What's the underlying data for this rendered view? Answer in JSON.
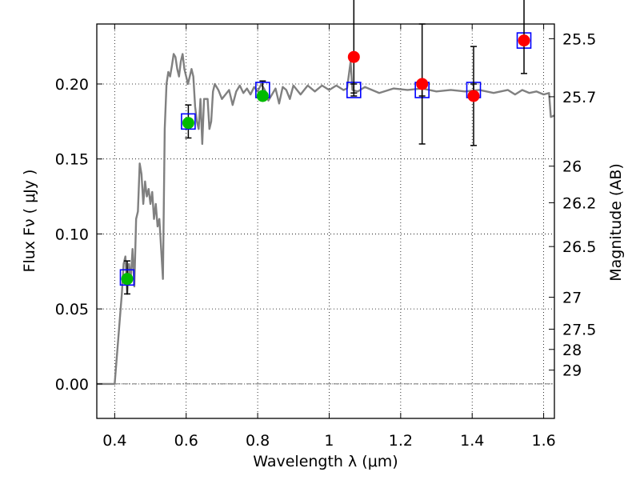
{
  "chart_data": {
    "type": "scatter",
    "title": "",
    "xlabel": "Wavelength  λ (μm)",
    "ylabel": "Flux  Fν  ( μJy )",
    "ylabel_right": "Magnitude (AB)",
    "xlim": [
      0.35,
      1.63
    ],
    "ylim": [
      -0.023,
      0.24
    ],
    "grid": true,
    "x_ticks": [
      0.4,
      0.6,
      0.8,
      1.0,
      1.2,
      1.4,
      1.6
    ],
    "x_tick_labels": [
      "0.4",
      "0.6",
      "0.8",
      "1",
      "1.2",
      "1.4",
      "1.6"
    ],
    "y_ticks": [
      0.0,
      0.05,
      0.1,
      0.15,
      0.2
    ],
    "y_tick_labels": [
      "0.00",
      "0.05",
      "0.10",
      "0.15",
      "0.20"
    ],
    "right_ticks": [
      {
        "label": "25.5",
        "flux": 0.2302
      },
      {
        "label": "25.7",
        "flux": 0.1915
      },
      {
        "label": "26",
        "flux": 0.1452
      },
      {
        "label": "26.2",
        "flux": 0.1208
      },
      {
        "label": "26.5",
        "flux": 0.0916
      },
      {
        "label": "27",
        "flux": 0.0578
      },
      {
        "label": "27.5",
        "flux": 0.0365
      },
      {
        "label": "28",
        "flux": 0.023
      },
      {
        "label": "29",
        "flux": 0.0092
      }
    ],
    "model_spectrum": {
      "name": "",
      "color": "#808080",
      "points": [
        [
          0.35,
          0.0
        ],
        [
          0.4,
          0.0
        ],
        [
          0.41,
          0.03
        ],
        [
          0.42,
          0.06
        ],
        [
          0.425,
          0.08
        ],
        [
          0.43,
          0.085
        ],
        [
          0.435,
          0.06
        ],
        [
          0.44,
          0.08
        ],
        [
          0.445,
          0.07
        ],
        [
          0.45,
          0.09
        ],
        [
          0.455,
          0.065
        ],
        [
          0.46,
          0.11
        ],
        [
          0.465,
          0.115
        ],
        [
          0.47,
          0.147
        ],
        [
          0.475,
          0.14
        ],
        [
          0.48,
          0.12
        ],
        [
          0.485,
          0.135
        ],
        [
          0.49,
          0.125
        ],
        [
          0.495,
          0.13
        ],
        [
          0.5,
          0.12
        ],
        [
          0.505,
          0.128
        ],
        [
          0.51,
          0.11
        ],
        [
          0.515,
          0.12
        ],
        [
          0.52,
          0.105
        ],
        [
          0.525,
          0.11
        ],
        [
          0.53,
          0.09
        ],
        [
          0.535,
          0.07
        ],
        [
          0.54,
          0.17
        ],
        [
          0.545,
          0.2
        ],
        [
          0.55,
          0.208
        ],
        [
          0.555,
          0.205
        ],
        [
          0.56,
          0.212
        ],
        [
          0.565,
          0.22
        ],
        [
          0.57,
          0.218
        ],
        [
          0.575,
          0.21
        ],
        [
          0.58,
          0.205
        ],
        [
          0.585,
          0.215
        ],
        [
          0.59,
          0.22
        ],
        [
          0.595,
          0.21
        ],
        [
          0.6,
          0.205
        ],
        [
          0.605,
          0.2
        ],
        [
          0.61,
          0.205
        ],
        [
          0.615,
          0.21
        ],
        [
          0.62,
          0.205
        ],
        [
          0.625,
          0.185
        ],
        [
          0.63,
          0.175
        ],
        [
          0.635,
          0.17
        ],
        [
          0.64,
          0.19
        ],
        [
          0.645,
          0.16
        ],
        [
          0.65,
          0.19
        ],
        [
          0.66,
          0.19
        ],
        [
          0.665,
          0.17
        ],
        [
          0.67,
          0.175
        ],
        [
          0.675,
          0.195
        ],
        [
          0.68,
          0.2
        ],
        [
          0.69,
          0.196
        ],
        [
          0.7,
          0.19
        ],
        [
          0.71,
          0.193
        ],
        [
          0.72,
          0.196
        ],
        [
          0.73,
          0.186
        ],
        [
          0.74,
          0.195
        ],
        [
          0.75,
          0.199
        ],
        [
          0.76,
          0.194
        ],
        [
          0.77,
          0.197
        ],
        [
          0.78,
          0.193
        ],
        [
          0.79,
          0.198
        ],
        [
          0.8,
          0.195
        ],
        [
          0.81,
          0.2
        ],
        [
          0.82,
          0.196
        ],
        [
          0.83,
          0.189
        ],
        [
          0.84,
          0.193
        ],
        [
          0.85,
          0.197
        ],
        [
          0.86,
          0.187
        ],
        [
          0.87,
          0.198
        ],
        [
          0.88,
          0.196
        ],
        [
          0.89,
          0.19
        ],
        [
          0.9,
          0.199
        ],
        [
          0.92,
          0.193
        ],
        [
          0.94,
          0.199
        ],
        [
          0.96,
          0.195
        ],
        [
          0.98,
          0.199
        ],
        [
          1.0,
          0.196
        ],
        [
          1.02,
          0.199
        ],
        [
          1.04,
          0.196
        ],
        [
          1.05,
          0.197
        ],
        [
          1.06,
          0.215
        ],
        [
          1.065,
          0.196
        ],
        [
          1.08,
          0.195
        ],
        [
          1.1,
          0.198
        ],
        [
          1.14,
          0.194
        ],
        [
          1.18,
          0.197
        ],
        [
          1.22,
          0.196
        ],
        [
          1.26,
          0.197
        ],
        [
          1.3,
          0.195
        ],
        [
          1.34,
          0.196
        ],
        [
          1.38,
          0.195
        ],
        [
          1.42,
          0.196
        ],
        [
          1.46,
          0.194
        ],
        [
          1.5,
          0.196
        ],
        [
          1.52,
          0.193
        ],
        [
          1.54,
          0.196
        ],
        [
          1.56,
          0.194
        ],
        [
          1.58,
          0.195
        ],
        [
          1.6,
          0.193
        ],
        [
          1.615,
          0.194
        ],
        [
          1.62,
          0.178
        ],
        [
          1.63,
          0.179
        ]
      ]
    },
    "blue_squares": {
      "name": "",
      "color": "#0000ff",
      "points": [
        {
          "x": 0.435,
          "y": 0.071,
          "err": 0.011
        },
        {
          "x": 0.606,
          "y": 0.175,
          "err": 0.011
        },
        {
          "x": 0.814,
          "y": 0.196,
          "err": 0.006
        },
        {
          "x": 1.069,
          "y": 0.196,
          "err": 0.004
        },
        {
          "x": 1.26,
          "y": 0.196,
          "err": 0.004
        },
        {
          "x": 1.404,
          "y": 0.196,
          "err": 0.004
        },
        {
          "x": 1.545,
          "y": 0.229,
          "err": 0.0
        }
      ]
    },
    "green_points": {
      "name": "",
      "color": "#00bb00",
      "points": [
        {
          "x": 0.435,
          "y": 0.07,
          "err": 0.011
        },
        {
          "x": 0.606,
          "y": 0.174,
          "err": 0.011
        },
        {
          "x": 0.814,
          "y": 0.192,
          "err": 0.01
        }
      ]
    },
    "red_points": {
      "name": "",
      "color": "#ff0000",
      "points": [
        {
          "x": 1.069,
          "y": 0.218,
          "err_low": 0.024,
          "err_high": 0.04
        },
        {
          "x": 1.26,
          "y": 0.2,
          "err_low": 0.04,
          "err_high": 0.04
        },
        {
          "x": 1.404,
          "y": 0.192,
          "err_low": 0.033,
          "err_high": 0.033
        },
        {
          "x": 1.545,
          "y": 0.229,
          "err_low": 0.022,
          "err_high": 0.03
        }
      ]
    }
  }
}
